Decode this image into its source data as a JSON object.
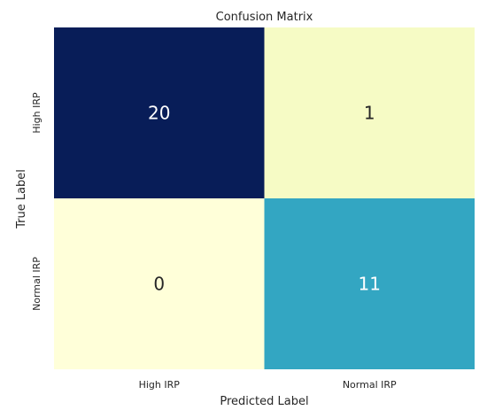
{
  "chart_data": {
    "type": "heatmap",
    "title": "Confusion Matrix",
    "xlabel": "Predicted Label",
    "ylabel": "True Label",
    "x_categories": [
      "High IRP",
      "Normal IRP"
    ],
    "y_categories": [
      "High IRP",
      "Normal IRP"
    ],
    "values": [
      [
        20,
        1
      ],
      [
        0,
        11
      ]
    ],
    "colormap": "YlGnBu",
    "colorbar": false,
    "cell_colors": [
      [
        "#081d58",
        "#f6fbc5"
      ],
      [
        "#ffffd9",
        "#33a6c2"
      ]
    ],
    "text_colors": [
      [
        "#ffffff",
        "#262626"
      ],
      [
        "#262626",
        "#ffffff"
      ]
    ]
  }
}
